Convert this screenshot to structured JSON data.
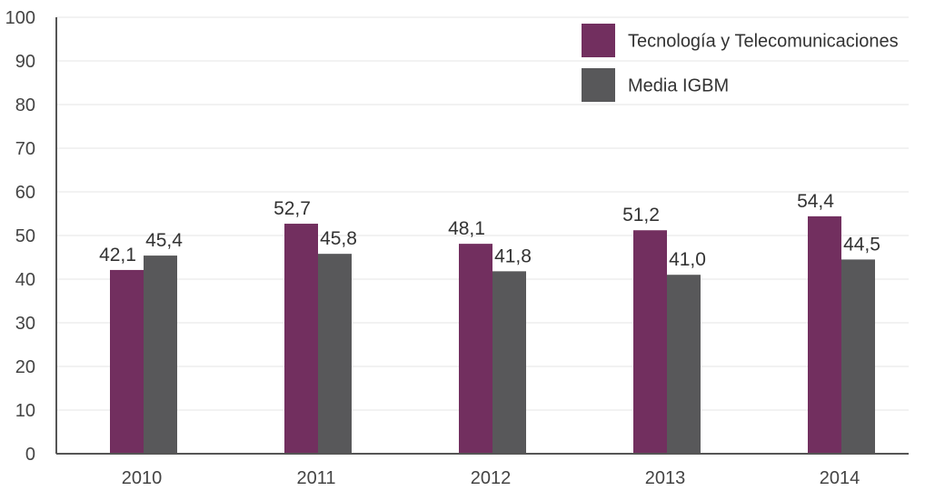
{
  "chart_data": {
    "type": "bar",
    "categories": [
      "2010",
      "2011",
      "2012",
      "2013",
      "2014"
    ],
    "series": [
      {
        "name": "Tecnología y Telecomunicaciones",
        "color": "#722f5f",
        "values": [
          42.1,
          52.7,
          48.1,
          51.2,
          54.4
        ],
        "labels": [
          "42,1",
          "52,7",
          "48,1",
          "51,2",
          "54,4"
        ]
      },
      {
        "name": "Media IGBM",
        "color": "#58585a",
        "values": [
          45.4,
          45.8,
          41.8,
          41.0,
          44.5
        ],
        "labels": [
          "45,4",
          "45,8",
          "41,8",
          "41,0",
          "44,5"
        ]
      }
    ],
    "ylim": [
      0,
      100
    ],
    "yticks": [
      0,
      10,
      20,
      30,
      40,
      50,
      60,
      70,
      80,
      90,
      100
    ],
    "grid": true,
    "legend_position": "top-right"
  }
}
